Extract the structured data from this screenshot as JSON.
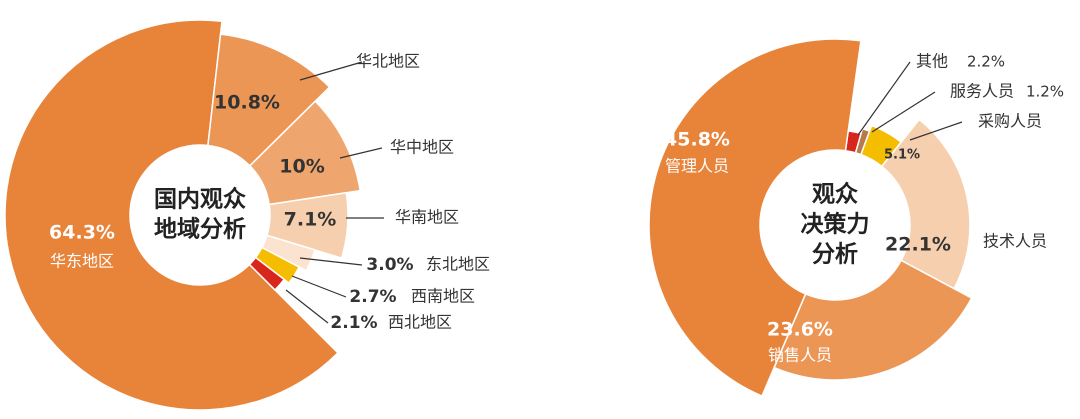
{
  "chart_data": [
    {
      "type": "pie",
      "title": [
        "国内观众",
        "地域分析"
      ],
      "categories": [
        "华东地区",
        "华北地区",
        "华中地区",
        "华南地区",
        "东北地区",
        "西南地区",
        "西北地区"
      ],
      "values": [
        64.3,
        10.8,
        10,
        7.1,
        3.0,
        2.7,
        2.1
      ],
      "value_labels": [
        "64.3%",
        "10.8%",
        "10%",
        "7.1%",
        "3.0%",
        "2.7%",
        "2.1%"
      ],
      "colors": [
        "#e8833a",
        "#ec9656",
        "#efa66e",
        "#f6cfae",
        "#fbe3d0",
        "#f5bd00",
        "#d9261c"
      ]
    },
    {
      "type": "pie",
      "title": [
        "观众",
        "决策力",
        "分析"
      ],
      "categories": [
        "其他",
        "服务人员",
        "采购人员",
        "技术人员",
        "销售人员",
        "管理人员"
      ],
      "values": [
        2.2,
        1.2,
        5.1,
        22.1,
        23.6,
        45.8
      ],
      "value_labels": [
        "2.2%",
        "1.2%",
        "5.1%",
        "22.1%",
        "23.6%",
        "45.8%"
      ],
      "colors": [
        "#d9261c",
        "#b87a4b",
        "#f5bd00",
        "#f6cfae",
        "#ec9656",
        "#e8833a"
      ]
    }
  ]
}
